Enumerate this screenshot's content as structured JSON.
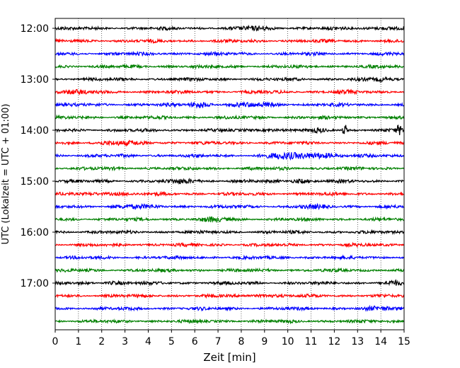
{
  "chart_data": {
    "type": "line",
    "title": "",
    "xlabel": "Zeit  [min]",
    "ylabel": "UTC (Lokalzeit = UTC + 01:00)",
    "xlim": [
      0,
      15
    ],
    "x_ticks": [
      "0",
      "1",
      "2",
      "3",
      "4",
      "5",
      "6",
      "7",
      "8",
      "9",
      "10",
      "11",
      "12",
      "13",
      "14",
      "15"
    ],
    "y_tick_labels": [
      "12:00",
      "13:00",
      "14:00",
      "15:00",
      "16:00",
      "17:00"
    ],
    "grid": "vertical dotted at each minute",
    "legend": "none",
    "trace_interval_minutes": 15,
    "trace_colors": [
      "#000000",
      "#ff0000",
      "#0000ff",
      "#008000"
    ],
    "traces": [
      {
        "start": "12:00",
        "color": "#000000"
      },
      {
        "start": "12:15",
        "color": "#ff0000"
      },
      {
        "start": "12:30",
        "color": "#0000ff"
      },
      {
        "start": "12:45",
        "color": "#008000"
      },
      {
        "start": "13:00",
        "color": "#000000"
      },
      {
        "start": "13:15",
        "color": "#ff0000"
      },
      {
        "start": "13:30",
        "color": "#0000ff"
      },
      {
        "start": "13:45",
        "color": "#008000"
      },
      {
        "start": "14:00",
        "color": "#000000"
      },
      {
        "start": "14:15",
        "color": "#ff0000"
      },
      {
        "start": "14:30",
        "color": "#0000ff"
      },
      {
        "start": "14:45",
        "color": "#008000"
      },
      {
        "start": "15:00",
        "color": "#000000"
      },
      {
        "start": "15:15",
        "color": "#ff0000"
      },
      {
        "start": "15:30",
        "color": "#0000ff"
      },
      {
        "start": "15:45",
        "color": "#008000"
      },
      {
        "start": "16:00",
        "color": "#000000"
      },
      {
        "start": "16:15",
        "color": "#ff0000"
      },
      {
        "start": "16:30",
        "color": "#0000ff"
      },
      {
        "start": "16:45",
        "color": "#008000"
      },
      {
        "start": "17:00",
        "color": "#000000"
      },
      {
        "start": "17:15",
        "color": "#ff0000"
      },
      {
        "start": "17:30",
        "color": "#0000ff"
      },
      {
        "start": "17:45",
        "color": "#008000"
      }
    ]
  }
}
